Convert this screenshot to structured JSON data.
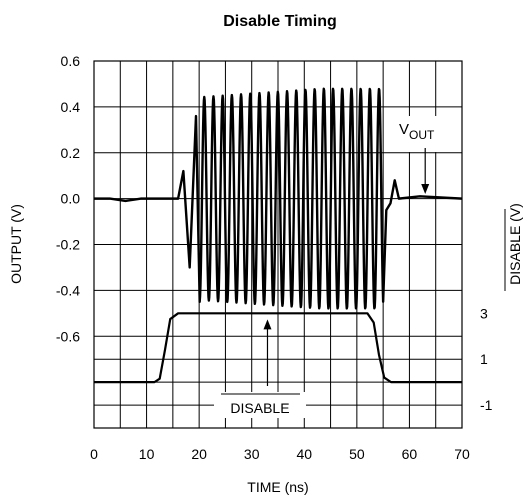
{
  "chart_data": {
    "type": "line",
    "title": "Disable Timing",
    "xlabel": "TIME (ns)",
    "ylabel": "OUTPUT (V)",
    "ylabel_right": "DISABLE (V)",
    "xlim": [
      0,
      70
    ],
    "x_ticks": [
      "0",
      "10",
      "20",
      "30",
      "40",
      "50",
      "60",
      "70"
    ],
    "ylim": [
      -1.0,
      0.6
    ],
    "y_ticks_left": [
      "0.6",
      "0.4",
      "0.2",
      "0.0",
      "-0.2",
      "-0.4",
      "-0.6"
    ],
    "y_ticks_right": [
      "3",
      "1",
      "-1"
    ],
    "grid": true,
    "series": [
      {
        "name": "VOUT",
        "label_main": "V",
        "label_sub": "OUT",
        "offset_v": 0.0,
        "amplitude_v": 0.48,
        "period_ns": 1.75,
        "segments": [
          {
            "t": 0.0,
            "v": 0.0
          },
          {
            "t": 3.0,
            "v": 0.0
          },
          {
            "t": 6.0,
            "v": -0.01
          },
          {
            "t": 9.0,
            "v": 0.0
          },
          {
            "t": 16.0,
            "v": 0.0
          },
          {
            "t": 17.0,
            "v": 0.12
          },
          {
            "t": 18.2,
            "v": -0.3
          },
          {
            "t": 19.4,
            "v": 0.36
          },
          {
            "t": 20.1,
            "v": -0.45
          },
          {
            "t": 55.0,
            "v": 0.5
          },
          {
            "t": 55.6,
            "v": -0.05
          },
          {
            "t": 56.4,
            "v": -0.02
          },
          {
            "t": 57.2,
            "v": 0.08
          },
          {
            "t": 58.0,
            "v": 0.0
          },
          {
            "t": 62.0,
            "v": 0.01
          },
          {
            "t": 70.0,
            "v": 0.0
          }
        ]
      },
      {
        "name": "DISABLE",
        "points": [
          {
            "t": 0.0,
            "v": 0.0
          },
          {
            "t": 11.5,
            "v": 0.0
          },
          {
            "t": 12.5,
            "v": 0.15
          },
          {
            "t": 13.5,
            "v": 1.4
          },
          {
            "t": 14.5,
            "v": 2.75
          },
          {
            "t": 16.0,
            "v": 3.0
          },
          {
            "t": 52.0,
            "v": 3.0
          },
          {
            "t": 53.2,
            "v": 2.6
          },
          {
            "t": 54.2,
            "v": 1.2
          },
          {
            "t": 55.2,
            "v": 0.2
          },
          {
            "t": 56.5,
            "v": 0.0
          },
          {
            "t": 70.0,
            "v": 0.0
          }
        ]
      }
    ],
    "annotations": [
      {
        "text": "DISABLE",
        "arrow_to_t": 33.0
      },
      {
        "text_main": "V",
        "text_sub": "OUT",
        "arrow_to_t": 63.0
      }
    ]
  }
}
